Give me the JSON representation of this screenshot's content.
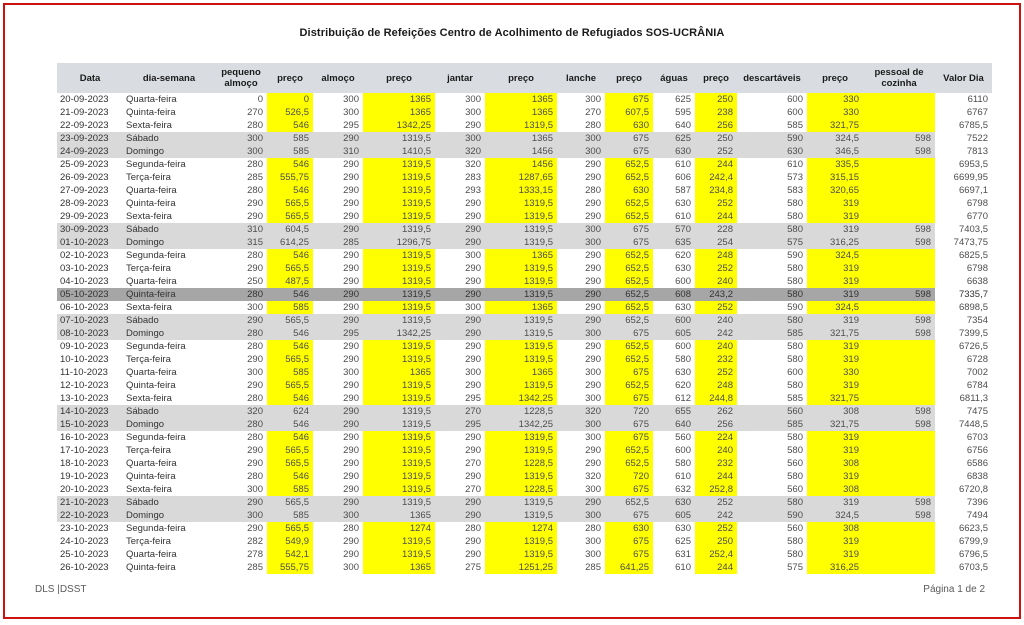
{
  "page": {
    "title": "Distribuição de Refeições Centro de Acolhimento de Refugiados  SOS-UCRÂNIA",
    "footer_left": "DLS |DSST",
    "footer_right": "Página 1 de 2"
  },
  "colors": {
    "highlight": "#ffff00",
    "weekend_row": "#d9d9d9",
    "holiday_row": "#a6a6a6",
    "header_bg": "#d9dde1",
    "page_border": "#cc1111"
  },
  "table": {
    "headers": [
      "Data",
      "dia-semana",
      "pequeno almoço",
      "preço",
      "almoço",
      "preço",
      "jantar",
      "preço",
      "lanche",
      "preço",
      "águas",
      "preço",
      "descartáveis",
      "preço",
      "pessoal de cozinha",
      "Valor Dia"
    ],
    "rows": [
      {
        "type": "weekday",
        "cells": [
          "20-09-2023",
          "Quarta-feira",
          "0",
          "0",
          "300",
          "1365",
          "300",
          "1365",
          "300",
          "675",
          "625",
          "250",
          "600",
          "330",
          "",
          "6110"
        ]
      },
      {
        "type": "weekday",
        "cells": [
          "21-09-2023",
          "Quinta-feira",
          "270",
          "526,5",
          "300",
          "1365",
          "300",
          "1365",
          "270",
          "607,5",
          "595",
          "238",
          "600",
          "330",
          "",
          "6767"
        ]
      },
      {
        "type": "weekday",
        "cells": [
          "22-09-2023",
          "Sexta-feira",
          "280",
          "546",
          "295",
          "1342,25",
          "290",
          "1319,5",
          "280",
          "630",
          "640",
          "256",
          "585",
          "321,75",
          "",
          "6785,5"
        ]
      },
      {
        "type": "weekend",
        "cells": [
          "23-09-2023",
          "Sábado",
          "300",
          "585",
          "290",
          "1319,5",
          "300",
          "1365",
          "300",
          "675",
          "625",
          "250",
          "590",
          "324,5",
          "598",
          "7522"
        ]
      },
      {
        "type": "weekend",
        "cells": [
          "24-09-2023",
          "Domingo",
          "300",
          "585",
          "310",
          "1410,5",
          "320",
          "1456",
          "300",
          "675",
          "630",
          "252",
          "630",
          "346,5",
          "598",
          "7813"
        ]
      },
      {
        "type": "weekday",
        "cells": [
          "25-09-2023",
          "Segunda-feira",
          "280",
          "546",
          "290",
          "1319,5",
          "320",
          "1456",
          "290",
          "652,5",
          "610",
          "244",
          "610",
          "335,5",
          "",
          "6953,5"
        ]
      },
      {
        "type": "weekday",
        "cells": [
          "26-09-2023",
          "Terça-feira",
          "285",
          "555,75",
          "290",
          "1319,5",
          "283",
          "1287,65",
          "290",
          "652,5",
          "606",
          "242,4",
          "573",
          "315,15",
          "",
          "6699,95"
        ]
      },
      {
        "type": "weekday",
        "cells": [
          "27-09-2023",
          "Quarta-feira",
          "280",
          "546",
          "290",
          "1319,5",
          "293",
          "1333,15",
          "280",
          "630",
          "587",
          "234,8",
          "583",
          "320,65",
          "",
          "6697,1"
        ]
      },
      {
        "type": "weekday",
        "cells": [
          "28-09-2023",
          "Quinta-feira",
          "290",
          "565,5",
          "290",
          "1319,5",
          "290",
          "1319,5",
          "290",
          "652,5",
          "630",
          "252",
          "580",
          "319",
          "",
          "6798"
        ]
      },
      {
        "type": "weekday",
        "cells": [
          "29-09-2023",
          "Sexta-feira",
          "290",
          "565,5",
          "290",
          "1319,5",
          "290",
          "1319,5",
          "290",
          "652,5",
          "610",
          "244",
          "580",
          "319",
          "",
          "6770"
        ]
      },
      {
        "type": "weekend",
        "cells": [
          "30-09-2023",
          "Sábado",
          "310",
          "604,5",
          "290",
          "1319,5",
          "290",
          "1319,5",
          "300",
          "675",
          "570",
          "228",
          "580",
          "319",
          "598",
          "7403,5"
        ]
      },
      {
        "type": "weekend",
        "cells": [
          "01-10-2023",
          "Domingo",
          "315",
          "614,25",
          "285",
          "1296,75",
          "290",
          "1319,5",
          "300",
          "675",
          "635",
          "254",
          "575",
          "316,25",
          "598",
          "7473,75"
        ]
      },
      {
        "type": "weekday",
        "cells": [
          "02-10-2023",
          "Segunda-feira",
          "280",
          "546",
          "290",
          "1319,5",
          "300",
          "1365",
          "290",
          "652,5",
          "620",
          "248",
          "590",
          "324,5",
          "",
          "6825,5"
        ]
      },
      {
        "type": "weekday",
        "cells": [
          "03-10-2023",
          "Terça-feira",
          "290",
          "565,5",
          "290",
          "1319,5",
          "290",
          "1319,5",
          "290",
          "652,5",
          "630",
          "252",
          "580",
          "319",
          "",
          "6798"
        ]
      },
      {
        "type": "weekday",
        "cells": [
          "04-10-2023",
          "Quarta-feira",
          "250",
          "487,5",
          "290",
          "1319,5",
          "290",
          "1319,5",
          "290",
          "652,5",
          "600",
          "240",
          "580",
          "319",
          "",
          "6638"
        ]
      },
      {
        "type": "holiday",
        "cells": [
          "05-10-2023",
          "Quinta-feira",
          "280",
          "546",
          "290",
          "1319,5",
          "290",
          "1319,5",
          "290",
          "652,5",
          "608",
          "243,2",
          "580",
          "319",
          "598",
          "7335,7"
        ]
      },
      {
        "type": "weekday",
        "cells": [
          "06-10-2023",
          "Sexta-feira",
          "300",
          "585",
          "290",
          "1319,5",
          "300",
          "1365",
          "290",
          "652,5",
          "630",
          "252",
          "590",
          "324,5",
          "",
          "6898,5"
        ]
      },
      {
        "type": "weekend",
        "cells": [
          "07-10-2023",
          "Sábado",
          "290",
          "565,5",
          "290",
          "1319,5",
          "290",
          "1319,5",
          "290",
          "652,5",
          "600",
          "240",
          "580",
          "319",
          "598",
          "7354"
        ]
      },
      {
        "type": "weekend",
        "cells": [
          "08-10-2023",
          "Domingo",
          "280",
          "546",
          "295",
          "1342,25",
          "290",
          "1319,5",
          "300",
          "675",
          "605",
          "242",
          "585",
          "321,75",
          "598",
          "7399,5"
        ]
      },
      {
        "type": "weekday",
        "cells": [
          "09-10-2023",
          "Segunda-feira",
          "280",
          "546",
          "290",
          "1319,5",
          "290",
          "1319,5",
          "290",
          "652,5",
          "600",
          "240",
          "580",
          "319",
          "",
          "6726,5"
        ]
      },
      {
        "type": "weekday",
        "cells": [
          "10-10-2023",
          "Terça-feira",
          "290",
          "565,5",
          "290",
          "1319,5",
          "290",
          "1319,5",
          "290",
          "652,5",
          "580",
          "232",
          "580",
          "319",
          "",
          "6728"
        ]
      },
      {
        "type": "weekday",
        "cells": [
          "11-10-2023",
          "Quarta-feira",
          "300",
          "585",
          "300",
          "1365",
          "300",
          "1365",
          "300",
          "675",
          "630",
          "252",
          "600",
          "330",
          "",
          "7002"
        ]
      },
      {
        "type": "weekday",
        "cells": [
          "12-10-2023",
          "Quinta-feira",
          "290",
          "565,5",
          "290",
          "1319,5",
          "290",
          "1319,5",
          "290",
          "652,5",
          "620",
          "248",
          "580",
          "319",
          "",
          "6784"
        ]
      },
      {
        "type": "weekday",
        "cells": [
          "13-10-2023",
          "Sexta-feira",
          "280",
          "546",
          "290",
          "1319,5",
          "295",
          "1342,25",
          "300",
          "675",
          "612",
          "244,8",
          "585",
          "321,75",
          "",
          "6811,3"
        ]
      },
      {
        "type": "weekend",
        "cells": [
          "14-10-2023",
          "Sábado",
          "320",
          "624",
          "290",
          "1319,5",
          "270",
          "1228,5",
          "320",
          "720",
          "655",
          "262",
          "560",
          "308",
          "598",
          "7475"
        ]
      },
      {
        "type": "weekend",
        "cells": [
          "15-10-2023",
          "Domingo",
          "280",
          "546",
          "290",
          "1319,5",
          "295",
          "1342,25",
          "300",
          "675",
          "640",
          "256",
          "585",
          "321,75",
          "598",
          "7448,5"
        ]
      },
      {
        "type": "weekday",
        "cells": [
          "16-10-2023",
          "Segunda-feira",
          "280",
          "546",
          "290",
          "1319,5",
          "290",
          "1319,5",
          "300",
          "675",
          "560",
          "224",
          "580",
          "319",
          "",
          "6703"
        ]
      },
      {
        "type": "weekday",
        "cells": [
          "17-10-2023",
          "Terça-feira",
          "290",
          "565,5",
          "290",
          "1319,5",
          "290",
          "1319,5",
          "290",
          "652,5",
          "600",
          "240",
          "580",
          "319",
          "",
          "6756"
        ]
      },
      {
        "type": "weekday",
        "cells": [
          "18-10-2023",
          "Quarta-feira",
          "290",
          "565,5",
          "290",
          "1319,5",
          "270",
          "1228,5",
          "290",
          "652,5",
          "580",
          "232",
          "560",
          "308",
          "",
          "6586"
        ]
      },
      {
        "type": "weekday",
        "cells": [
          "19-10-2023",
          "Quinta-feira",
          "280",
          "546",
          "290",
          "1319,5",
          "290",
          "1319,5",
          "320",
          "720",
          "610",
          "244",
          "580",
          "319",
          "",
          "6838"
        ]
      },
      {
        "type": "weekday",
        "cells": [
          "20-10-2023",
          "Sexta-feira",
          "300",
          "585",
          "290",
          "1319,5",
          "270",
          "1228,5",
          "300",
          "675",
          "632",
          "252,8",
          "560",
          "308",
          "",
          "6720,8"
        ]
      },
      {
        "type": "weekend",
        "cells": [
          "21-10-2023",
          "Sábado",
          "290",
          "565,5",
          "290",
          "1319,5",
          "290",
          "1319,5",
          "290",
          "652,5",
          "630",
          "252",
          "580",
          "319",
          "598",
          "7396"
        ]
      },
      {
        "type": "weekend",
        "cells": [
          "22-10-2023",
          "Domingo",
          "300",
          "585",
          "300",
          "1365",
          "290",
          "1319,5",
          "300",
          "675",
          "605",
          "242",
          "590",
          "324,5",
          "598",
          "7494"
        ]
      },
      {
        "type": "weekday",
        "cells": [
          "23-10-2023",
          "Segunda-feira",
          "290",
          "565,5",
          "280",
          "1274",
          "280",
          "1274",
          "280",
          "630",
          "630",
          "252",
          "560",
          "308",
          "",
          "6623,5"
        ]
      },
      {
        "type": "weekday",
        "cells": [
          "24-10-2023",
          "Terça-feira",
          "282",
          "549,9",
          "290",
          "1319,5",
          "290",
          "1319,5",
          "300",
          "675",
          "625",
          "250",
          "580",
          "319",
          "",
          "6799,9"
        ]
      },
      {
        "type": "weekday",
        "cells": [
          "25-10-2023",
          "Quarta-feira",
          "278",
          "542,1",
          "290",
          "1319,5",
          "290",
          "1319,5",
          "300",
          "675",
          "631",
          "252,4",
          "580",
          "319",
          "",
          "6796,5"
        ]
      },
      {
        "type": "weekday",
        "cells": [
          "26-10-2023",
          "Quinta-feira",
          "285",
          "555,75",
          "300",
          "1365",
          "275",
          "1251,25",
          "285",
          "641,25",
          "610",
          "244",
          "575",
          "316,25",
          "",
          "6703,5"
        ]
      }
    ]
  }
}
